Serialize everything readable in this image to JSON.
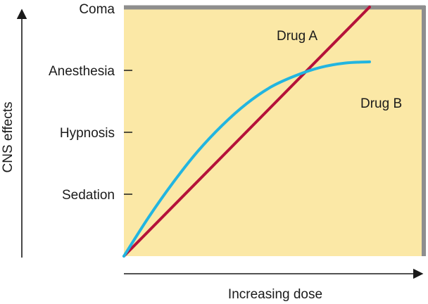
{
  "chart_data": {
    "type": "line",
    "title": "",
    "xlabel": "Increasing dose",
    "ylabel": "CNS effects",
    "y_levels": [
      "Sedation",
      "Hypnosis",
      "Anesthesia",
      "Coma"
    ],
    "xlim": [
      0,
      1
    ],
    "ylim": [
      0,
      4
    ],
    "grid": false,
    "legend": "inline labels",
    "series": [
      {
        "name": "Drug A",
        "color": "#b5123a",
        "x": [
          0,
          1
        ],
        "y": [
          0,
          4
        ]
      },
      {
        "name": "Drug B",
        "color": "#22b5e0",
        "x": [
          0,
          0.1,
          0.2,
          0.3,
          0.4,
          0.5,
          0.6,
          0.7,
          0.8,
          0.9,
          1.0
        ],
        "y": [
          0,
          0.62,
          1.18,
          1.68,
          2.1,
          2.45,
          2.72,
          2.9,
          3.03,
          3.1,
          3.12
        ]
      }
    ],
    "colors": {
      "plot_background": "#fbe8a6",
      "frame_edge": "#8e8e8e",
      "axis": "#1a1a1a"
    }
  }
}
